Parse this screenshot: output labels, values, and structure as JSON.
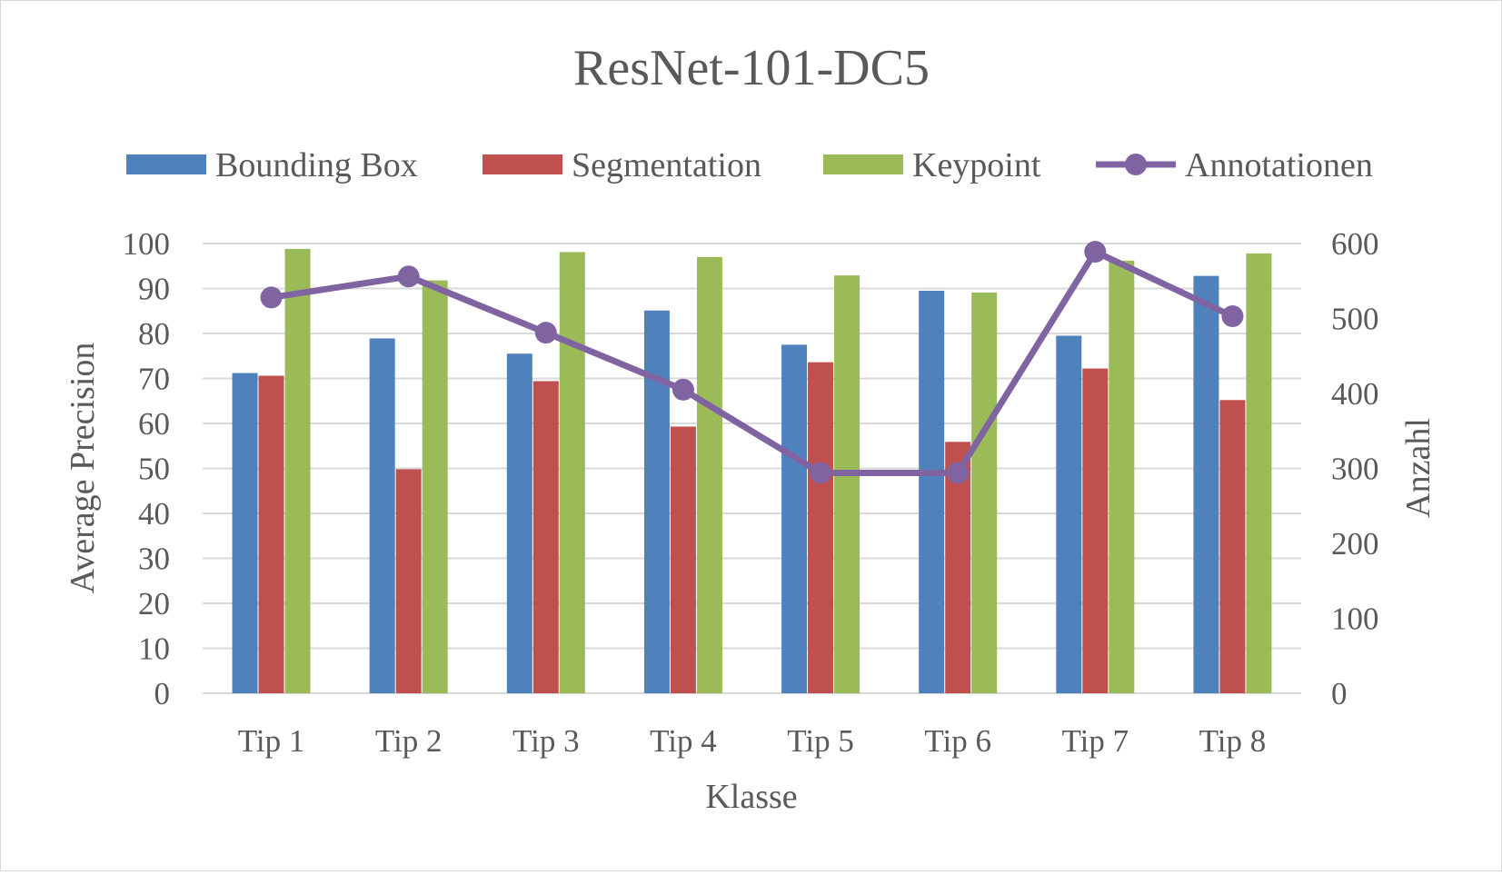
{
  "chart_data": {
    "type": "bar",
    "title": "ResNet-101-DC5",
    "xlabel": "Klasse",
    "ylabel": "Average Precision",
    "y2label": "Anzahl",
    "categories": [
      "Tip 1",
      "Tip 2",
      "Tip 3",
      "Tip 4",
      "Tip 5",
      "Tip 6",
      "Tip 7",
      "Tip 8"
    ],
    "ylim": [
      0,
      100
    ],
    "yticks": [
      "0",
      "10",
      "20",
      "30",
      "40",
      "50",
      "60",
      "70",
      "80",
      "90",
      "100"
    ],
    "y2lim": [
      0,
      600
    ],
    "y2ticks": [
      "0",
      "100",
      "200",
      "300",
      "400",
      "500",
      "600"
    ],
    "grid": true,
    "legend_position": "top",
    "series": [
      {
        "name": "Bounding Box",
        "type": "bar",
        "axis": "left",
        "color": "#4f81bd",
        "values": [
          71.2,
          78.9,
          75.5,
          85.1,
          77.5,
          89.5,
          79.5,
          92.8
        ]
      },
      {
        "name": "Segmentation",
        "type": "bar",
        "axis": "left",
        "color": "#c0504d",
        "values": [
          70.6,
          49.8,
          69.4,
          59.3,
          73.6,
          55.9,
          72.2,
          65.2
        ]
      },
      {
        "name": "Keypoint",
        "type": "bar",
        "axis": "left",
        "color": "#9bbb59",
        "values": [
          98.8,
          91.8,
          98.1,
          97.0,
          92.9,
          89.1,
          96.2,
          97.8
        ]
      },
      {
        "name": "Annotationen",
        "type": "line",
        "axis": "right",
        "color": "#8064a2",
        "values": [
          528,
          556,
          481,
          405,
          294,
          294,
          589,
          503
        ]
      }
    ]
  }
}
